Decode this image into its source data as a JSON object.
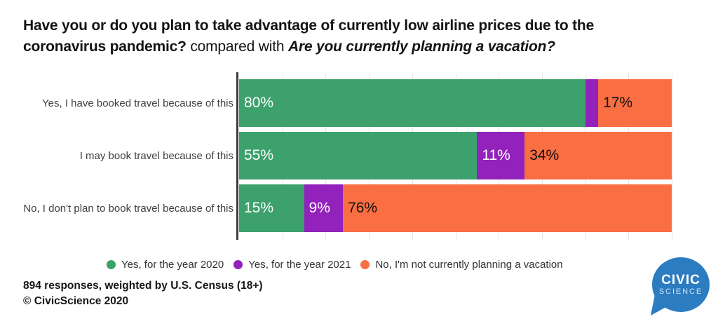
{
  "title": {
    "line1_bold": "Have you or do you plan to take advantage of currently low airline prices due to the",
    "line2_bold": "coronavirus pandemic?",
    "line2_regular": "compared with",
    "line2_bold_italic": "Are you currently planning a vacation?"
  },
  "chart_data": {
    "type": "bar",
    "orientation": "horizontal-stacked",
    "title": "Have you or do you plan to take advantage of currently low airline prices due to the coronavirus pandemic? compared with Are you currently planning a vacation?",
    "categories": [
      "Yes, I have booked travel because of this",
      "I may book travel because of this",
      "No, I don't plan to book travel because of this"
    ],
    "series": [
      {
        "name": "Yes, for the year 2020",
        "color": "#3CA16C",
        "values": [
          80,
          55,
          15
        ],
        "labels": [
          "80%",
          "55%",
          "15%"
        ],
        "label_color": "#FFFFFF"
      },
      {
        "name": "Yes, for the year 2021",
        "color": "#9321BC",
        "values": [
          3,
          11,
          9
        ],
        "labels": [
          "",
          "11%",
          "9%"
        ],
        "label_color": "#FFFFFF"
      },
      {
        "name": "No, I'm not currently planning a vacation",
        "color": "#FA6E43",
        "values": [
          17,
          34,
          76
        ],
        "labels": [
          "17%",
          "34%",
          "76%"
        ],
        "label_color": "#111111"
      }
    ],
    "xlabel": "",
    "ylabel": "",
    "xlim": [
      0,
      100
    ],
    "gridline_step": 10,
    "grid": true,
    "legend_position": "bottom"
  },
  "footer": {
    "line1": "894 responses, weighted by U.S. Census (18+)",
    "line2": "© CivicScience 2020"
  },
  "logo": {
    "line1": "CIVIC",
    "line2": "SCIENCE",
    "color": "#2C7CC1"
  },
  "colors": {
    "axis": "#3C3C3C",
    "gridline": "#E3E3E3",
    "category_label": "#404040",
    "title_text": "#141414",
    "logo_blue": "#2C7CC1"
  }
}
